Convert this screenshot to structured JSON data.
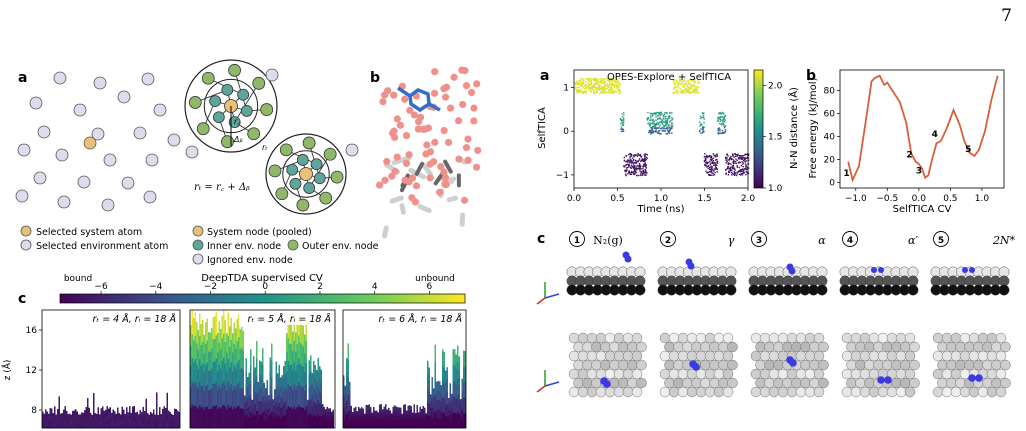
{
  "page_number": "7",
  "left_figure": {
    "panel_a_label": "a",
    "panel_b_label": "b",
    "panel_c_label": "c",
    "legend_a": [
      "Selected system atom",
      "Selected environment atom"
    ],
    "legend_nodes": [
      "System node (pooled)",
      "Inner env. node",
      "Outer env. node",
      "Ignored env. node"
    ],
    "formula": "rₜ = r꜀ + Δᵦ",
    "rc_label": "r꜀",
    "delta_label": "Δᵦ",
    "rt_label": "rₜ",
    "colorbar": {
      "title": "DeepTDA supervised CV",
      "left_note": "bound",
      "right_note": "unbound",
      "ticks": [
        "−6",
        "−4",
        "−2",
        "0",
        "2",
        "4",
        "6"
      ],
      "tick_values": [
        -6,
        -4,
        -2,
        0,
        2,
        4,
        6
      ],
      "range": [
        -7.5,
        7.3
      ]
    },
    "y_axis_label": "z (Å)",
    "y_ticks": [
      "8",
      "12",
      "16"
    ],
    "subplots": [
      {
        "title": "rₜ = 4 Å, rᵢ = 18 Å"
      },
      {
        "title": "rₜ = 5 Å, rᵢ = 18 Å"
      },
      {
        "title": "rₜ = 6 Å, rᵢ = 18 Å"
      }
    ]
  },
  "right_figure": {
    "panel_a_label": "a",
    "panel_b_label": "b",
    "panel_c_label": "c",
    "chart_data": [
      {
        "type": "scatter",
        "title": "OPES-Explore + SelfTICA",
        "xlabel": "Time (ns)",
        "ylabel": "SelfTICA",
        "x_ticks": [
          "0.0",
          "0.5",
          "1.0",
          "1.5",
          "2.0"
        ],
        "y_ticks": [
          "−1",
          "0",
          "1"
        ],
        "xlim": [
          0,
          2.0
        ],
        "ylim": [
          -1.3,
          1.4
        ],
        "colorbar_label": "N-N distance (Å)",
        "colorbar_ticks": [
          "1.0",
          "1.5",
          "2.0"
        ],
        "colorbar_range": [
          1.0,
          2.15
        ]
      },
      {
        "type": "line",
        "xlabel": "SelfTICA CV",
        "ylabel": "Free energy (kJ/mol)",
        "x_ticks": [
          "−1.0",
          "−0.5",
          "0.0",
          "0.5",
          "1.0"
        ],
        "y_ticks": [
          "0",
          "20",
          "40",
          "60",
          "80"
        ],
        "xlim": [
          -1.25,
          1.35
        ],
        "ylim": [
          -5,
          98
        ],
        "x": [
          -1.12,
          -1.05,
          -0.95,
          -0.85,
          -0.75,
          -0.7,
          -0.62,
          -0.55,
          -0.5,
          -0.42,
          -0.3,
          -0.2,
          -0.12,
          -0.05,
          0.0,
          0.05,
          0.1,
          0.15,
          0.2,
          0.28,
          0.35,
          0.45,
          0.55,
          0.65,
          0.72,
          0.8,
          0.88,
          0.95,
          1.05,
          1.15,
          1.25
        ],
        "y": [
          18,
          2,
          14,
          50,
          88,
          91,
          93,
          85,
          87,
          80,
          70,
          52,
          25,
          18,
          16,
          12,
          4,
          6,
          18,
          34,
          36,
          48,
          63,
          50,
          36,
          26,
          23,
          28,
          45,
          72,
          93
        ],
        "annotations": [
          {
            "label": "1",
            "x": -1.05,
            "y": 2
          },
          {
            "label": "2",
            "x": -0.05,
            "y": 18
          },
          {
            "label": "3",
            "x": 0.1,
            "y": 4
          },
          {
            "label": "4",
            "x": 0.35,
            "y": 36
          },
          {
            "label": "5",
            "x": 0.88,
            "y": 23
          }
        ]
      }
    ],
    "states": [
      {
        "num": "1",
        "label": "N₂(g)"
      },
      {
        "num": "2",
        "label": "γ"
      },
      {
        "num": "3",
        "label": "α"
      },
      {
        "num": "4",
        "label": "α′"
      },
      {
        "num": "5",
        "label": "2N*"
      }
    ]
  }
}
